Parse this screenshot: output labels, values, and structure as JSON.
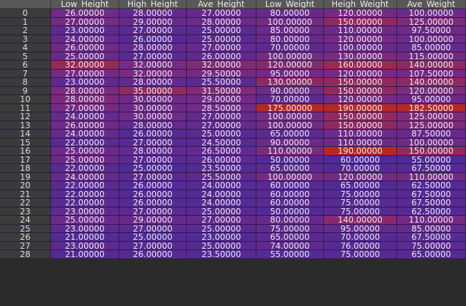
{
  "columns": [
    "Low_Height",
    "High_Height",
    "Ave_Height",
    "Low_Weight",
    "Heigh_Weight",
    "Ave_Weight"
  ],
  "colors": {
    "low": "#4a2a9a",
    "mid": "#7a2a82",
    "high": "#b52828",
    "header": "#585858",
    "index": "#3b3b3b"
  },
  "rows": [
    {
      "index": "0",
      "values": [
        "26.00000",
        "28.00000",
        "27.00000",
        "80.00000",
        "120.00000",
        "100.00000"
      ],
      "heat": [
        0.4,
        0.25,
        0.28,
        0.3,
        0.45,
        0.38
      ]
    },
    {
      "index": "1",
      "values": [
        "27.00000",
        "29.00000",
        "28.00000",
        "100.00000",
        "150.00000",
        "125.00000"
      ],
      "heat": [
        0.45,
        0.32,
        0.35,
        0.45,
        0.7,
        0.55
      ]
    },
    {
      "index": "2",
      "values": [
        "23.00000",
        "27.00000",
        "25.00000",
        "85.00000",
        "110.00000",
        "97.50000"
      ],
      "heat": [
        0.22,
        0.18,
        0.18,
        0.33,
        0.38,
        0.36
      ]
    },
    {
      "index": "3",
      "values": [
        "24.00000",
        "26.00000",
        "25.00000",
        "80.00000",
        "120.00000",
        "100.00000"
      ],
      "heat": [
        0.28,
        0.12,
        0.18,
        0.3,
        0.45,
        0.38
      ]
    },
    {
      "index": "4",
      "values": [
        "26.00000",
        "28.00000",
        "27.00000",
        "70.00000",
        "100.00000",
        "85.00000"
      ],
      "heat": [
        0.4,
        0.25,
        0.28,
        0.22,
        0.32,
        0.28
      ]
    },
    {
      "index": "5",
      "values": [
        "25.00000",
        "27.00000",
        "26.00000",
        "100.00000",
        "130.00000",
        "115.00000"
      ],
      "heat": [
        0.34,
        0.18,
        0.23,
        0.45,
        0.52,
        0.47
      ]
    },
    {
      "index": "6",
      "values": [
        "32.00000",
        "32.00000",
        "32.00000",
        "120.00000",
        "160.00000",
        "140.00000"
      ],
      "heat": [
        0.75,
        0.5,
        0.58,
        0.6,
        0.78,
        0.68
      ]
    },
    {
      "index": "7",
      "values": [
        "27.00000",
        "32.00000",
        "29.50000",
        "95.00000",
        "120.00000",
        "107.50000"
      ],
      "heat": [
        0.45,
        0.5,
        0.45,
        0.42,
        0.45,
        0.42
      ]
    },
    {
      "index": "8",
      "values": [
        "23.00000",
        "28.00000",
        "25.50000",
        "130.00000",
        "150.00000",
        "140.00000"
      ],
      "heat": [
        0.22,
        0.25,
        0.2,
        0.68,
        0.7,
        0.68
      ]
    },
    {
      "index": "9",
      "values": [
        "28.00000",
        "35.00000",
        "31.50000",
        "90.00000",
        "150.00000",
        "120.00000"
      ],
      "heat": [
        0.52,
        0.7,
        0.56,
        0.38,
        0.7,
        0.52
      ]
    },
    {
      "index": "10",
      "values": [
        "28.00000",
        "30.00000",
        "29.00000",
        "70.00000",
        "120.00000",
        "95.00000"
      ],
      "heat": [
        0.52,
        0.38,
        0.42,
        0.22,
        0.45,
        0.34
      ]
    },
    {
      "index": "11",
      "values": [
        "27.00000",
        "30.00000",
        "28.50000",
        "175.00000",
        "190.00000",
        "182.50000"
      ],
      "heat": [
        0.45,
        0.38,
        0.4,
        1.0,
        1.0,
        1.0
      ]
    },
    {
      "index": "12",
      "values": [
        "24.00000",
        "30.00000",
        "27.00000",
        "100.00000",
        "150.00000",
        "125.00000"
      ],
      "heat": [
        0.28,
        0.38,
        0.28,
        0.45,
        0.7,
        0.55
      ]
    },
    {
      "index": "13",
      "values": [
        "26.00000",
        "28.00000",
        "27.00000",
        "100.00000",
        "150.00000",
        "125.00000"
      ],
      "heat": [
        0.4,
        0.25,
        0.28,
        0.45,
        0.7,
        0.55
      ]
    },
    {
      "index": "14",
      "values": [
        "24.00000",
        "26.00000",
        "25.00000",
        "65.00000",
        "110.00000",
        "87.50000"
      ],
      "heat": [
        0.28,
        0.12,
        0.18,
        0.18,
        0.38,
        0.3
      ]
    },
    {
      "index": "15",
      "values": [
        "22.00000",
        "27.00000",
        "24.50000",
        "90.00000",
        "110.00000",
        "100.00000"
      ],
      "heat": [
        0.16,
        0.18,
        0.15,
        0.38,
        0.38,
        0.38
      ]
    },
    {
      "index": "16",
      "values": [
        "25.00000",
        "28.00000",
        "26.50000",
        "110.00000",
        "190.00000",
        "150.00000"
      ],
      "heat": [
        0.34,
        0.25,
        0.26,
        0.52,
        1.0,
        0.72
      ]
    },
    {
      "index": "17",
      "values": [
        "25.00000",
        "27.00000",
        "26.00000",
        "50.00000",
        "60.00000",
        "55.00000"
      ],
      "heat": [
        0.34,
        0.18,
        0.23,
        0.08,
        0.05,
        0.06
      ]
    },
    {
      "index": "18",
      "values": [
        "22.00000",
        "25.00000",
        "23.50000",
        "65.00000",
        "70.00000",
        "67.50000"
      ],
      "heat": [
        0.16,
        0.06,
        0.1,
        0.18,
        0.12,
        0.15
      ]
    },
    {
      "index": "19",
      "values": [
        "24.00000",
        "27.00000",
        "25.50000",
        "100.00000",
        "120.00000",
        "110.00000"
      ],
      "heat": [
        0.28,
        0.18,
        0.2,
        0.45,
        0.45,
        0.44
      ]
    },
    {
      "index": "20",
      "values": [
        "22.00000",
        "26.00000",
        "24.00000",
        "60.00000",
        "65.00000",
        "62.50000"
      ],
      "heat": [
        0.16,
        0.12,
        0.12,
        0.15,
        0.08,
        0.1
      ]
    },
    {
      "index": "21",
      "values": [
        "22.00000",
        "26.00000",
        "24.00000",
        "60.00000",
        "75.00000",
        "67.50000"
      ],
      "heat": [
        0.16,
        0.12,
        0.12,
        0.15,
        0.15,
        0.15
      ]
    },
    {
      "index": "22",
      "values": [
        "22.00000",
        "26.00000",
        "24.00000",
        "60.00000",
        "75.00000",
        "67.50000"
      ],
      "heat": [
        0.16,
        0.12,
        0.12,
        0.15,
        0.15,
        0.15
      ]
    },
    {
      "index": "23",
      "values": [
        "23.00000",
        "27.00000",
        "25.00000",
        "50.00000",
        "75.00000",
        "62.50000"
      ],
      "heat": [
        0.22,
        0.18,
        0.18,
        0.08,
        0.15,
        0.1
      ]
    },
    {
      "index": "24",
      "values": [
        "25.00000",
        "29.00000",
        "27.00000",
        "80.00000",
        "140.00000",
        "110.00000"
      ],
      "heat": [
        0.34,
        0.32,
        0.28,
        0.3,
        0.62,
        0.44
      ]
    },
    {
      "index": "25",
      "values": [
        "23.00000",
        "27.00000",
        "25.00000",
        "75.00000",
        "95.00000",
        "85.00000"
      ],
      "heat": [
        0.22,
        0.18,
        0.18,
        0.26,
        0.28,
        0.28
      ]
    },
    {
      "index": "26",
      "values": [
        "21.00000",
        "25.00000",
        "23.00000",
        "65.00000",
        "70.00000",
        "67.50000"
      ],
      "heat": [
        0.1,
        0.06,
        0.08,
        0.18,
        0.12,
        0.15
      ]
    },
    {
      "index": "27",
      "values": [
        "23.00000",
        "27.00000",
        "25.00000",
        "74.00000",
        "76.00000",
        "75.00000"
      ],
      "heat": [
        0.22,
        0.18,
        0.18,
        0.25,
        0.16,
        0.2
      ]
    },
    {
      "index": "28",
      "values": [
        "21.00000",
        "26.00000",
        "23.50000",
        "55.00000",
        "75.00000",
        "65.00000"
      ],
      "heat": [
        0.1,
        0.12,
        0.1,
        0.12,
        0.15,
        0.12
      ]
    }
  ]
}
